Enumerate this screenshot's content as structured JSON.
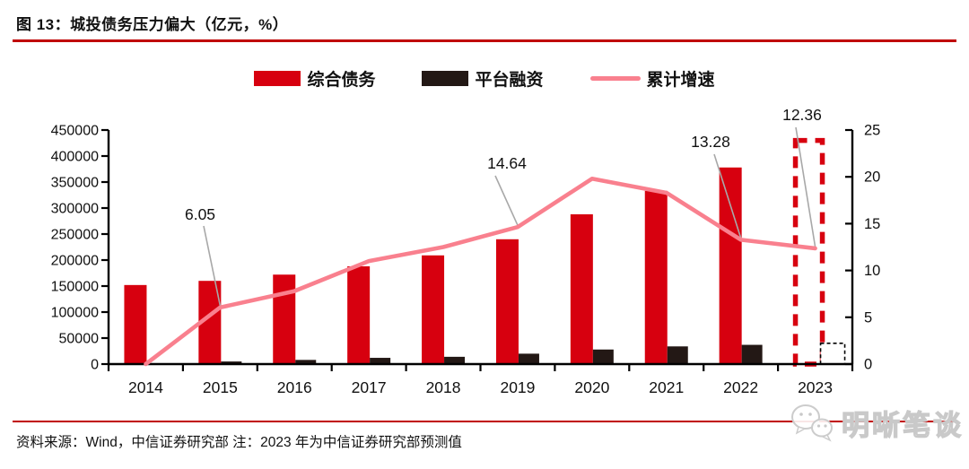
{
  "figure": {
    "title": "图 13：城投债务压力偏大（亿元，%）"
  },
  "chart_data": {
    "type": "bar",
    "title": "城投债务压力偏大",
    "units": {
      "left": "亿元",
      "right": "%"
    },
    "categories": [
      "2014",
      "2015",
      "2016",
      "2017",
      "2018",
      "2019",
      "2020",
      "2021",
      "2022",
      "2023"
    ],
    "series": [
      {
        "name": "综合债务",
        "kind": "bar",
        "axis": "left",
        "color": "#d7000f",
        "values": [
          152000,
          160000,
          172000,
          188000,
          209000,
          240000,
          288000,
          333000,
          378000,
          430000
        ],
        "last_is_forecast": true
      },
      {
        "name": "平台融资",
        "kind": "bar",
        "axis": "left",
        "color": "#231815",
        "values": [
          1000,
          5000,
          8000,
          12000,
          14000,
          20000,
          28000,
          34000,
          37000,
          40000
        ],
        "last_is_forecast": true
      },
      {
        "name": "累计增速",
        "kind": "line",
        "axis": "right",
        "color": "#f9808e",
        "values": [
          0,
          6.05,
          7.8,
          11.0,
          12.5,
          14.64,
          19.8,
          18.3,
          13.28,
          12.36
        ]
      }
    ],
    "annotations": [
      {
        "category": "2015",
        "series": "累计增速",
        "text": "6.05"
      },
      {
        "category": "2019",
        "series": "累计增速",
        "text": "14.64"
      },
      {
        "category": "2022",
        "series": "累计增速",
        "text": "13.28"
      },
      {
        "category": "2023",
        "series": "累计增速",
        "text": "12.36"
      }
    ],
    "left_axis": {
      "min": 0,
      "max": 450000,
      "step": 50000,
      "ticks": [
        "0",
        "50000",
        "100000",
        "150000",
        "200000",
        "250000",
        "300000",
        "350000",
        "400000",
        "450000"
      ]
    },
    "right_axis": {
      "min": 0,
      "max": 25,
      "step": 5,
      "ticks": [
        "0",
        "5",
        "10",
        "15",
        "20",
        "25"
      ]
    },
    "legend_position": "top-center",
    "grid": false
  },
  "footer": {
    "source_note": "资料来源：Wind，中信证券研究部 注：2023 年为中信证券研究部预测值"
  },
  "watermark": {
    "text": "明晰笔谈",
    "icon": "wechat-icon"
  },
  "colors": {
    "bar_debt": "#d7000f",
    "bar_financing": "#231815",
    "line_growth": "#f9808e",
    "rule_red": "#c00000",
    "leader_gray": "#a8a8a8",
    "axis_black": "#000000"
  }
}
